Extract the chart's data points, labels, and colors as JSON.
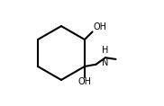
{
  "bg_color": "#ffffff",
  "line_color": "#000000",
  "line_width": 1.5,
  "font_size": 7,
  "oh_top_text": "OH",
  "oh_bottom_text": "OH",
  "nh_text": "H",
  "n_text": "N"
}
